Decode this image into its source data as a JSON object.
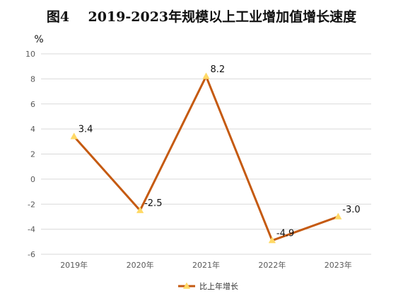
{
  "chart_data": {
    "type": "line",
    "title": "图4    2019-2023年规模以上工业增加值增长速度",
    "ylabel": "%",
    "xlabel": "",
    "categories": [
      "2019年",
      "2020年",
      "2021年",
      "2022年",
      "2023年"
    ],
    "series": [
      {
        "name": "比上年增长",
        "values": [
          3.4,
          -2.5,
          8.2,
          -4.9,
          -3.0
        ],
        "data_labels": [
          "3.4",
          "-2.5",
          "8.2",
          "-4.9",
          "-3.0"
        ],
        "line_color": "#C55A11",
        "marker_color": "#FFD966",
        "marker": "triangle"
      }
    ],
    "ylim": [
      -6,
      10
    ],
    "yticks": [
      -6,
      -4,
      -2,
      0,
      2,
      4,
      6,
      8,
      10
    ],
    "ytick_labels": [
      "-6",
      "-4",
      "-2",
      "0",
      "2",
      "4",
      "6",
      "8",
      "10"
    ],
    "grid": true,
    "grid_color": "#D9D9D9",
    "legend": "bottom-center"
  }
}
